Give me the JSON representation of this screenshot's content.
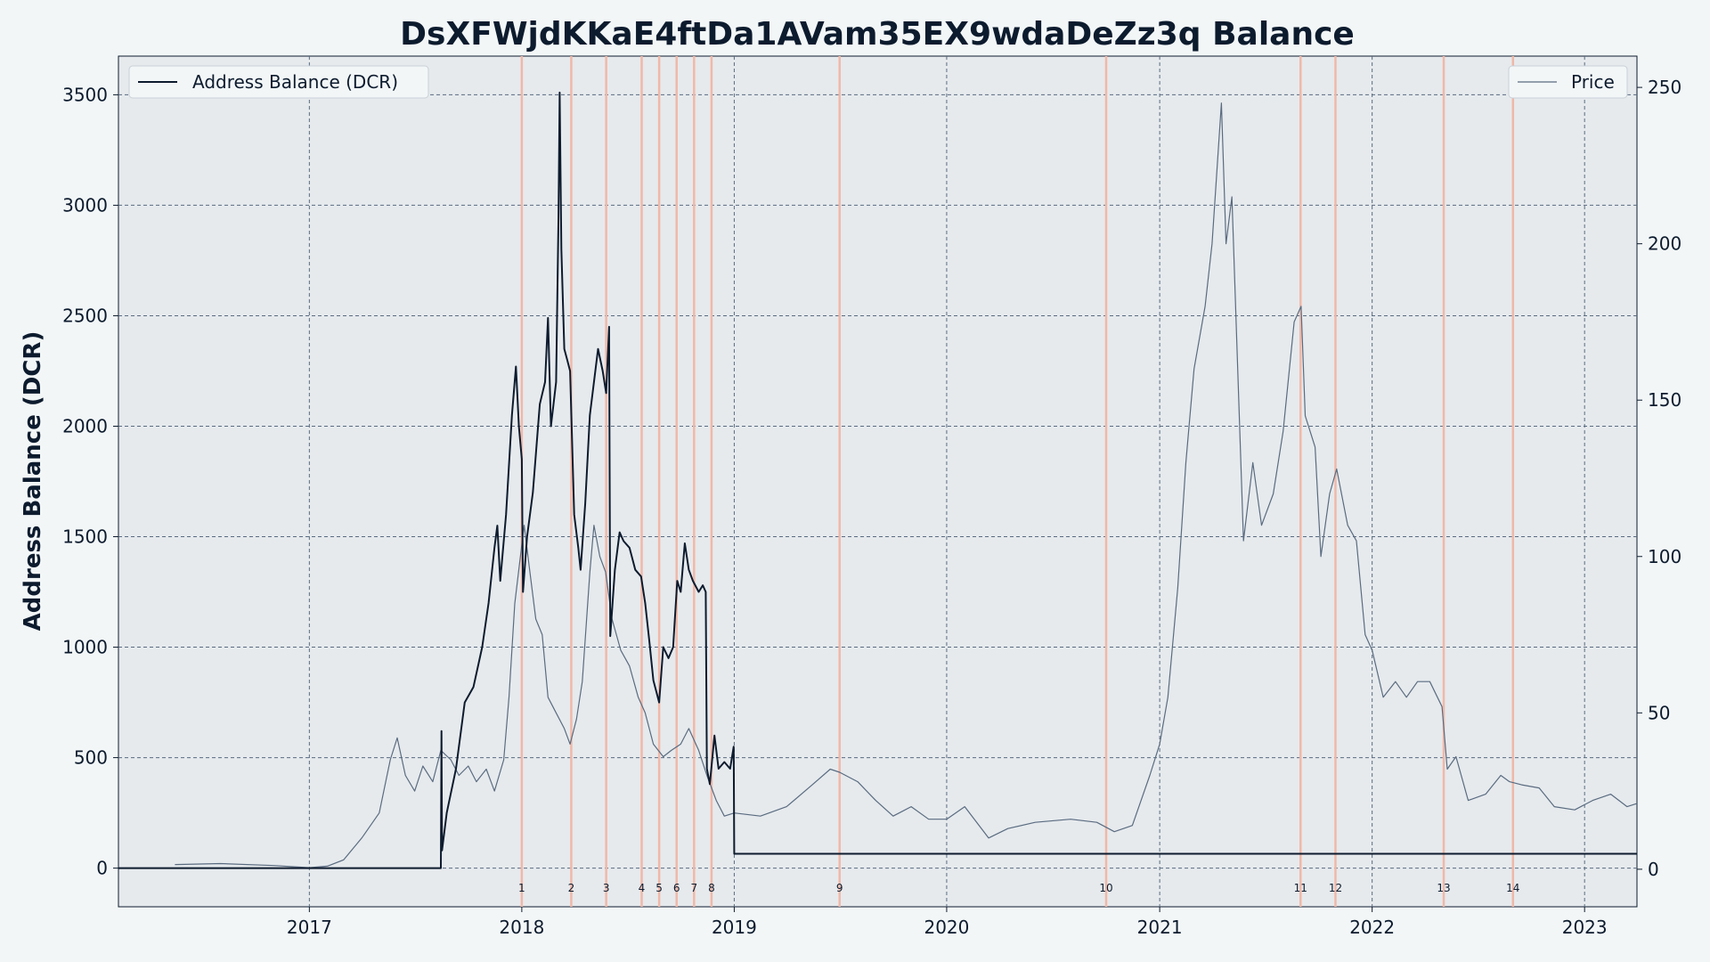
{
  "chart_data": {
    "type": "line",
    "title": "DsXFWjdKKaE4ftDa1AVam35EX9wdaDeZz3q Balance",
    "ylabel": "Address Balance (DCR)",
    "ylabel_right": "",
    "xlim": [
      "2016-02-08",
      "2023-04-01"
    ],
    "ylim": [
      -175,
      3675
    ],
    "ylim_right": [
      -12,
      260
    ],
    "x_ticks": [
      {
        "date": "2017-01-01",
        "label": "2017"
      },
      {
        "date": "2018-01-01",
        "label": "2018"
      },
      {
        "date": "2019-01-01",
        "label": "2019"
      },
      {
        "date": "2020-01-01",
        "label": "2020"
      },
      {
        "date": "2021-01-01",
        "label": "2021"
      },
      {
        "date": "2022-01-01",
        "label": "2022"
      },
      {
        "date": "2023-01-01",
        "label": "2023"
      }
    ],
    "y_ticks": [
      0,
      500,
      1000,
      1500,
      2000,
      2500,
      3000,
      3500
    ],
    "y_ticks_right": [
      0,
      50,
      100,
      150,
      200,
      250
    ],
    "grid": true,
    "legends": [
      {
        "label": "Address Balance (DCR)",
        "placement": "top-left"
      },
      {
        "label": "Price",
        "placement": "top-right"
      }
    ],
    "colors": {
      "balance": "#0d1b2e",
      "price": "#5a6b80",
      "event_line": "#f0b8a8",
      "plot_bg": "#e6eaed",
      "grid": "#5a6b80"
    },
    "series": [
      {
        "name": "Address Balance (DCR)",
        "axis": "left",
        "points": [
          [
            "2016-02-08",
            0
          ],
          [
            "2017-08-15",
            0
          ],
          [
            "2017-08-16",
            620
          ],
          [
            "2017-08-17",
            80
          ],
          [
            "2017-08-25",
            250
          ],
          [
            "2017-09-10",
            450
          ],
          [
            "2017-09-25",
            750
          ],
          [
            "2017-10-10",
            820
          ],
          [
            "2017-10-25",
            1000
          ],
          [
            "2017-11-05",
            1200
          ],
          [
            "2017-11-15",
            1450
          ],
          [
            "2017-11-20",
            1550
          ],
          [
            "2017-11-25",
            1300
          ],
          [
            "2017-12-05",
            1600
          ],
          [
            "2017-12-15",
            2050
          ],
          [
            "2017-12-22",
            2270
          ],
          [
            "2017-12-27",
            2000
          ],
          [
            "2018-01-01",
            1850
          ],
          [
            "2018-01-03",
            1250
          ],
          [
            "2018-01-10",
            1500
          ],
          [
            "2018-01-20",
            1700
          ],
          [
            "2018-02-01",
            2100
          ],
          [
            "2018-02-10",
            2200
          ],
          [
            "2018-02-15",
            2490
          ],
          [
            "2018-02-20",
            2000
          ],
          [
            "2018-03-01",
            2200
          ],
          [
            "2018-03-05",
            2950
          ],
          [
            "2018-03-07",
            3510
          ],
          [
            "2018-03-10",
            2800
          ],
          [
            "2018-03-15",
            2350
          ],
          [
            "2018-03-20",
            2300
          ],
          [
            "2018-03-25",
            2250
          ],
          [
            "2018-04-01",
            1600
          ],
          [
            "2018-04-08",
            1450
          ],
          [
            "2018-04-12",
            1350
          ],
          [
            "2018-04-20",
            1650
          ],
          [
            "2018-04-28",
            2050
          ],
          [
            "2018-05-05",
            2200
          ],
          [
            "2018-05-12",
            2350
          ],
          [
            "2018-05-20",
            2250
          ],
          [
            "2018-05-26",
            2150
          ],
          [
            "2018-05-31",
            2450
          ],
          [
            "2018-06-02",
            1050
          ],
          [
            "2018-06-10",
            1350
          ],
          [
            "2018-06-18",
            1520
          ],
          [
            "2018-06-25",
            1480
          ],
          [
            "2018-07-05",
            1450
          ],
          [
            "2018-07-15",
            1350
          ],
          [
            "2018-07-25",
            1320
          ],
          [
            "2018-08-01",
            1200
          ],
          [
            "2018-08-08",
            1030
          ],
          [
            "2018-08-15",
            850
          ],
          [
            "2018-08-25",
            750
          ],
          [
            "2018-09-01",
            1000
          ],
          [
            "2018-09-10",
            950
          ],
          [
            "2018-09-18",
            1000
          ],
          [
            "2018-09-25",
            1300
          ],
          [
            "2018-10-01",
            1250
          ],
          [
            "2018-10-08",
            1470
          ],
          [
            "2018-10-15",
            1350
          ],
          [
            "2018-10-22",
            1300
          ],
          [
            "2018-11-01",
            1250
          ],
          [
            "2018-11-08",
            1280
          ],
          [
            "2018-11-13",
            1250
          ],
          [
            "2018-11-15",
            450
          ],
          [
            "2018-11-20",
            380
          ],
          [
            "2018-11-28",
            600
          ],
          [
            "2018-12-05",
            450
          ],
          [
            "2018-12-15",
            480
          ],
          [
            "2018-12-25",
            450
          ],
          [
            "2018-12-31",
            550
          ],
          [
            "2019-01-01",
            65
          ],
          [
            "2023-04-01",
            65
          ]
        ]
      },
      {
        "name": "Price",
        "axis": "right",
        "points": [
          [
            "2016-05-15",
            1.5
          ],
          [
            "2016-08-01",
            1.8
          ],
          [
            "2016-11-01",
            1.2
          ],
          [
            "2017-01-01",
            0.5
          ],
          [
            "2017-02-01",
            1
          ],
          [
            "2017-03-01",
            3
          ],
          [
            "2017-04-01",
            10
          ],
          [
            "2017-05-01",
            18
          ],
          [
            "2017-05-20",
            35
          ],
          [
            "2017-06-01",
            42
          ],
          [
            "2017-06-15",
            30
          ],
          [
            "2017-07-01",
            25
          ],
          [
            "2017-07-15",
            33
          ],
          [
            "2017-08-01",
            28
          ],
          [
            "2017-08-15",
            38
          ],
          [
            "2017-09-01",
            35
          ],
          [
            "2017-09-15",
            30
          ],
          [
            "2017-10-01",
            33
          ],
          [
            "2017-10-15",
            28
          ],
          [
            "2017-11-01",
            32
          ],
          [
            "2017-11-15",
            25
          ],
          [
            "2017-12-01",
            35
          ],
          [
            "2017-12-10",
            55
          ],
          [
            "2017-12-20",
            85
          ],
          [
            "2018-01-05",
            110
          ],
          [
            "2018-01-15",
            95
          ],
          [
            "2018-01-25",
            80
          ],
          [
            "2018-02-05",
            75
          ],
          [
            "2018-02-15",
            55
          ],
          [
            "2018-03-01",
            50
          ],
          [
            "2018-03-15",
            45
          ],
          [
            "2018-03-25",
            40
          ],
          [
            "2018-04-05",
            48
          ],
          [
            "2018-04-15",
            60
          ],
          [
            "2018-04-28",
            95
          ],
          [
            "2018-05-05",
            110
          ],
          [
            "2018-05-15",
            100
          ],
          [
            "2018-05-25",
            95
          ],
          [
            "2018-06-05",
            80
          ],
          [
            "2018-06-20",
            70
          ],
          [
            "2018-07-05",
            65
          ],
          [
            "2018-07-20",
            55
          ],
          [
            "2018-08-01",
            50
          ],
          [
            "2018-08-15",
            40
          ],
          [
            "2018-09-01",
            36
          ],
          [
            "2018-09-15",
            38
          ],
          [
            "2018-10-01",
            40
          ],
          [
            "2018-10-15",
            45
          ],
          [
            "2018-11-01",
            38
          ],
          [
            "2018-11-15",
            30
          ],
          [
            "2018-12-01",
            22
          ],
          [
            "2018-12-15",
            17
          ],
          [
            "2019-01-01",
            18
          ],
          [
            "2019-02-15",
            17
          ],
          [
            "2019-04-01",
            20
          ],
          [
            "2019-05-15",
            27
          ],
          [
            "2019-06-15",
            32
          ],
          [
            "2019-07-01",
            31
          ],
          [
            "2019-08-01",
            28
          ],
          [
            "2019-09-01",
            22
          ],
          [
            "2019-10-01",
            17
          ],
          [
            "2019-11-01",
            20
          ],
          [
            "2019-12-01",
            16
          ],
          [
            "2020-01-01",
            16
          ],
          [
            "2020-02-01",
            20
          ],
          [
            "2020-03-13",
            10
          ],
          [
            "2020-04-15",
            13
          ],
          [
            "2020-06-01",
            15
          ],
          [
            "2020-08-01",
            16
          ],
          [
            "2020-09-15",
            15
          ],
          [
            "2020-10-15",
            12
          ],
          [
            "2020-11-15",
            14
          ],
          [
            "2020-12-15",
            30
          ],
          [
            "2021-01-01",
            40
          ],
          [
            "2021-01-15",
            55
          ],
          [
            "2021-02-01",
            90
          ],
          [
            "2021-02-15",
            130
          ],
          [
            "2021-03-01",
            160
          ],
          [
            "2021-03-20",
            180
          ],
          [
            "2021-04-01",
            200
          ],
          [
            "2021-04-17",
            245
          ],
          [
            "2021-04-25",
            200
          ],
          [
            "2021-05-05",
            215
          ],
          [
            "2021-05-15",
            160
          ],
          [
            "2021-05-25",
            105
          ],
          [
            "2021-06-10",
            130
          ],
          [
            "2021-06-25",
            110
          ],
          [
            "2021-07-15",
            120
          ],
          [
            "2021-08-01",
            140
          ],
          [
            "2021-08-20",
            175
          ],
          [
            "2021-09-01",
            180
          ],
          [
            "2021-09-08",
            145
          ],
          [
            "2021-09-25",
            135
          ],
          [
            "2021-10-05",
            100
          ],
          [
            "2021-10-20",
            120
          ],
          [
            "2021-11-01",
            128
          ],
          [
            "2021-11-20",
            110
          ],
          [
            "2021-12-05",
            105
          ],
          [
            "2021-12-20",
            75
          ],
          [
            "2022-01-01",
            70
          ],
          [
            "2022-01-20",
            55
          ],
          [
            "2022-02-10",
            60
          ],
          [
            "2022-03-01",
            55
          ],
          [
            "2022-03-20",
            60
          ],
          [
            "2022-04-10",
            60
          ],
          [
            "2022-05-01",
            52
          ],
          [
            "2022-05-10",
            32
          ],
          [
            "2022-05-25",
            36
          ],
          [
            "2022-06-15",
            22
          ],
          [
            "2022-07-15",
            24
          ],
          [
            "2022-08-10",
            30
          ],
          [
            "2022-08-25",
            28
          ],
          [
            "2022-09-15",
            27
          ],
          [
            "2022-10-15",
            26
          ],
          [
            "2022-11-10",
            20
          ],
          [
            "2022-12-15",
            19
          ],
          [
            "2023-01-15",
            22
          ],
          [
            "2023-02-15",
            24
          ],
          [
            "2023-03-15",
            20
          ],
          [
            "2023-04-01",
            21
          ]
        ]
      }
    ],
    "events": [
      {
        "date": "2018-01-01",
        "label": "1"
      },
      {
        "date": "2018-03-27",
        "label": "2"
      },
      {
        "date": "2018-05-26",
        "label": "3"
      },
      {
        "date": "2018-07-26",
        "label": "4"
      },
      {
        "date": "2018-08-25",
        "label": "5"
      },
      {
        "date": "2018-09-24",
        "label": "6"
      },
      {
        "date": "2018-10-24",
        "label": "7"
      },
      {
        "date": "2018-11-23",
        "label": "8"
      },
      {
        "date": "2019-07-01",
        "label": "9"
      },
      {
        "date": "2020-10-01",
        "label": "10"
      },
      {
        "date": "2021-08-31",
        "label": "11"
      },
      {
        "date": "2021-10-30",
        "label": "12"
      },
      {
        "date": "2022-05-04",
        "label": "13"
      },
      {
        "date": "2022-08-31",
        "label": "14"
      }
    ]
  }
}
